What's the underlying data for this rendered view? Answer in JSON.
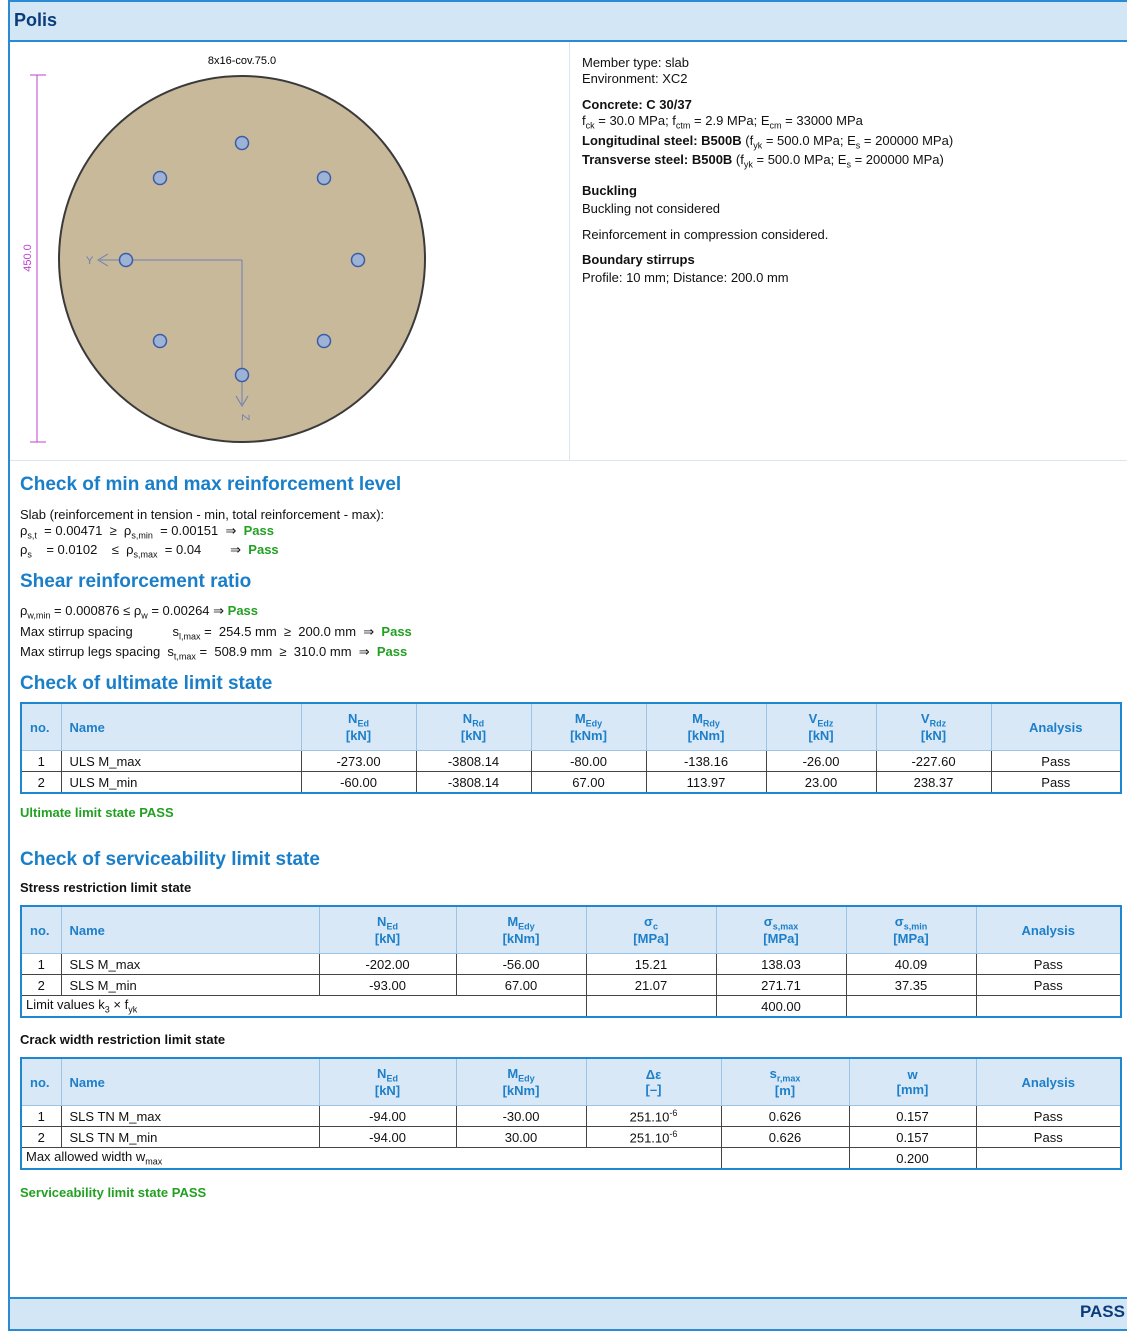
{
  "header": {
    "title": "Polis"
  },
  "drawing": {
    "label": "8x16-cov.75.0",
    "dimension": "450.0",
    "axis_y": "Y",
    "axis_z": "Z"
  },
  "properties": {
    "member_type": "Member type: slab",
    "environment": "Environment: XC2",
    "concrete_title": "Concrete: C 30/37",
    "concrete_props": [
      "f",
      {
        "sub": "ck"
      },
      " = 30.0 MPa; f",
      {
        "sub": "ctm"
      },
      " = 2.9 MPa; E",
      {
        "sub": "cm"
      },
      " = 33000 MPa"
    ],
    "longitudinal": [
      {
        "bold": "Longitudinal steel: B500B"
      },
      " (f",
      {
        "sub": "yk"
      },
      " = 500.0 MPa; E",
      {
        "sub": "s"
      },
      " = 200000 MPa)"
    ],
    "transverse": [
      {
        "bold": "Transverse steel: B500B"
      },
      " (f",
      {
        "sub": "yk"
      },
      " = 500.0 MPa; E",
      {
        "sub": "s"
      },
      " = 200000 MPa)"
    ],
    "buckling_title": "Buckling",
    "buckling": "Buckling not considered",
    "compression": "Reinforcement in compression considered.",
    "stirrups_title": "Boundary stirrups",
    "stirrups": "Profile: 10 mm; Distance: 200.0 mm"
  },
  "reinforcement_check": {
    "title": "Check of min and max reinforcement level",
    "intro": "Slab (reinforcement in tension - min, total reinforcement - max):",
    "lines": [
      [
        "ρ",
        {
          "sub": "s,t"
        },
        "  = 0.00471  ≥  ρ",
        {
          "sub": "s,min"
        },
        "  = 0.00151  ⇒  ",
        {
          "green": "Pass"
        }
      ],
      [
        "ρ",
        {
          "sub": "s"
        },
        "    = 0.0102    ≤  ρ",
        {
          "sub": "s,max"
        },
        "  = 0.04        ⇒  ",
        {
          "green": "Pass"
        }
      ]
    ]
  },
  "shear_check": {
    "title": "Shear reinforcement ratio",
    "lines": [
      [
        "ρ",
        {
          "sub": "w,min"
        },
        " = 0.000876 ≤ ρ",
        {
          "sub": "w"
        },
        " = 0.00264 ⇒ ",
        {
          "green": "Pass"
        }
      ],
      [
        "Max stirrup spacing           s",
        {
          "sub": "l,max"
        },
        " =  254.5 mm  ≥  200.0 mm  ⇒  ",
        {
          "green": "Pass"
        }
      ],
      [
        "Max stirrup legs spacing  s",
        {
          "sub": "t,max"
        },
        " =  508.9 mm  ≥  310.0 mm  ⇒  ",
        {
          "green": "Pass"
        }
      ]
    ]
  },
  "uls": {
    "title": "Check of ultimate limit state",
    "columns": [
      [
        "no."
      ],
      [
        "Name"
      ],
      [
        [
          "N",
          {
            "sub": "Ed"
          }
        ],
        "[kN]"
      ],
      [
        [
          "N",
          {
            "sub": "Rd"
          }
        ],
        "[kN]"
      ],
      [
        [
          "M",
          {
            "sub": "Edy"
          }
        ],
        "[kNm]"
      ],
      [
        [
          "M",
          {
            "sub": "Rdy"
          }
        ],
        "[kNm]"
      ],
      [
        [
          "V",
          {
            "sub": "Edz"
          }
        ],
        "[kN]"
      ],
      [
        [
          "V",
          {
            "sub": "Rdz"
          }
        ],
        "[kN]"
      ],
      [
        "Analysis"
      ]
    ],
    "rows": [
      [
        "1",
        "ULS M_max",
        "-273.00",
        "-3808.14",
        "-80.00",
        "-138.16",
        "-26.00",
        "-227.60",
        "Pass"
      ],
      [
        "2",
        "ULS M_min",
        "-60.00",
        "-3808.14",
        "67.00",
        "113.97",
        "23.00",
        "238.37",
        "Pass"
      ]
    ],
    "result": "Ultimate limit state PASS"
  },
  "sls": {
    "title": "Check of serviceability limit state",
    "stress": {
      "title": "Stress restriction limit state",
      "columns": [
        [
          "no."
        ],
        [
          "Name"
        ],
        [
          [
            "N",
            {
              "sub": "Ed"
            }
          ],
          "[kN]"
        ],
        [
          [
            "M",
            {
              "sub": "Edy"
            }
          ],
          "[kNm]"
        ],
        [
          [
            "σ",
            {
              "sub": "c"
            }
          ],
          "[MPa]"
        ],
        [
          [
            "σ",
            {
              "sub": "s,max"
            }
          ],
          "[MPa]"
        ],
        [
          [
            "σ",
            {
              "sub": "s,min"
            }
          ],
          "[MPa]"
        ],
        [
          "Analysis"
        ]
      ],
      "rows": [
        [
          "1",
          "SLS M_max",
          "-202.00",
          "-56.00",
          "15.21",
          "138.03",
          "40.09",
          "Pass"
        ],
        [
          "2",
          "SLS M_min",
          "-93.00",
          "67.00",
          "21.07",
          "271.71",
          "37.35",
          "Pass"
        ]
      ],
      "footer": [
        [
          "Limit values k",
          {
            "sub": "3"
          },
          " × f",
          {
            "sub": "yk"
          }
        ],
        null,
        "400.00",
        null,
        null
      ]
    },
    "crack": {
      "title": "Crack width restriction limit state",
      "columns": [
        [
          "no."
        ],
        [
          "Name"
        ],
        [
          [
            "N",
            {
              "sub": "Ed"
            }
          ],
          "[kN]"
        ],
        [
          [
            "M",
            {
              "sub": "Edy"
            }
          ],
          "[kNm]"
        ],
        [
          "Δε",
          "[–]"
        ],
        [
          [
            "s",
            {
              "sub": "r,max"
            }
          ],
          "[m]"
        ],
        [
          "w",
          "[mm]"
        ],
        [
          "Analysis"
        ]
      ],
      "rows": [
        [
          "1",
          "SLS TN M_max",
          "-94.00",
          "-30.00",
          [
            "251.10",
            {
              "sup": "-6"
            }
          ],
          "0.626",
          "0.157",
          "Pass"
        ],
        [
          "2",
          "SLS TN M_min",
          "-94.00",
          "30.00",
          [
            "251.10",
            {
              "sup": "-6"
            }
          ],
          "0.626",
          "0.157",
          "Pass"
        ]
      ],
      "footer": [
        [
          "Max allowed width w",
          {
            "sub": "max"
          }
        ],
        null,
        "0.200",
        null
      ]
    },
    "result": "Serviceability limit state PASS"
  },
  "footer": {
    "status": "PASS"
  }
}
